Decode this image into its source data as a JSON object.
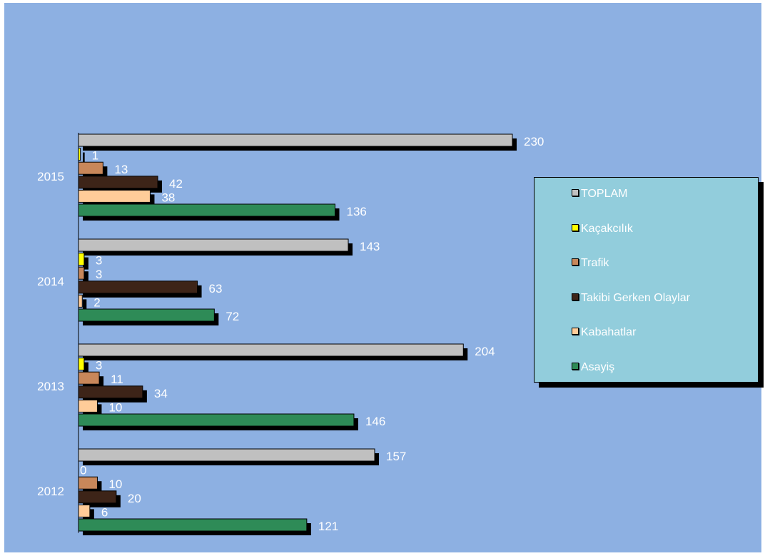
{
  "chart_data": {
    "type": "bar",
    "orientation": "horizontal",
    "categories": [
      "2015",
      "2014",
      "2013",
      "2012"
    ],
    "series": [
      {
        "name": "TOPLAM",
        "color": "#c0c0c0",
        "values": [
          230,
          143,
          204,
          157
        ]
      },
      {
        "name": "Kaçakcılık",
        "color": "#ffff00",
        "values": [
          1,
          3,
          3,
          0
        ]
      },
      {
        "name": "Trafik",
        "color": "#c8875a",
        "values": [
          13,
          3,
          11,
          10
        ]
      },
      {
        "name": "Takibi Gerken Olaylar",
        "color": "#3d2418",
        "values": [
          42,
          63,
          34,
          20
        ]
      },
      {
        "name": "Kabahatlar",
        "color": "#ffcc99",
        "values": [
          38,
          2,
          10,
          6
        ]
      },
      {
        "name": "Asayiş",
        "color": "#2e8b57",
        "values": [
          136,
          72,
          146,
          121
        ]
      }
    ],
    "xlim": [
      0,
      230
    ],
    "grid": false,
    "legend": "right",
    "data_labels": true
  }
}
